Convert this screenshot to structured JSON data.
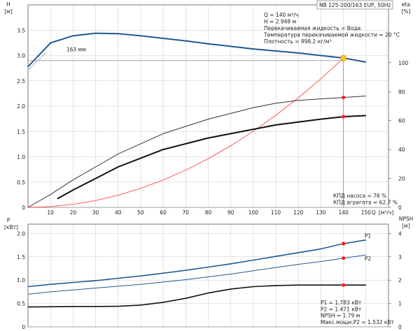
{
  "chart_data": [
    {
      "type": "line",
      "title": "NB 125-200/163 EUP, 50Hz",
      "left_axis": {
        "label": "H",
        "unit": "[м]",
        "ylim": [
          0,
          4.0
        ],
        "ticks": [
          "0",
          "0.5",
          "1.0",
          "1.5",
          "2.0",
          "2.5",
          "3.0",
          "3.5"
        ]
      },
      "right_axis": {
        "label": "eta",
        "unit": "[%]",
        "ylim": [
          0,
          140
        ],
        "ticks": [
          "0",
          "20",
          "40",
          "60",
          "80",
          "100"
        ]
      },
      "x_axis": {
        "label": "Q",
        "unit": "[м³/ч]",
        "xlim": [
          0,
          160
        ],
        "ticks": [
          "10",
          "20",
          "30",
          "40",
          "50",
          "60",
          "70",
          "80",
          "90",
          "100",
          "110",
          "120",
          "130",
          "140",
          "150"
        ]
      },
      "impeller_label": "163 мм",
      "operating_point": {
        "q": 140,
        "h": 2.948,
        "eta_pump": 76,
        "eta_unit": 62.7
      },
      "series": [
        {
          "key": "H",
          "color": "#1f5a92",
          "axis": "left",
          "x": [
            0,
            10,
            20,
            30,
            40,
            50,
            60,
            70,
            80,
            90,
            100,
            110,
            120,
            130,
            140,
            150
          ],
          "y": [
            2.78,
            3.25,
            3.39,
            3.44,
            3.43,
            3.39,
            3.34,
            3.29,
            3.23,
            3.18,
            3.13,
            3.09,
            3.05,
            3.0,
            2.95,
            2.87
          ]
        },
        {
          "key": "eta_pump",
          "color": "#333333",
          "axis": "right",
          "x": [
            0,
            10,
            20,
            30,
            40,
            50,
            60,
            70,
            80,
            90,
            100,
            110,
            120,
            130,
            140,
            150
          ],
          "y": [
            0,
            9,
            19,
            28,
            37,
            44,
            51,
            56,
            61,
            65,
            69,
            72,
            74,
            75,
            76,
            77
          ]
        },
        {
          "key": "eta_unit",
          "color": "#111111",
          "axis": "right",
          "x": [
            13,
            20,
            30,
            40,
            50,
            60,
            70,
            80,
            90,
            100,
            110,
            120,
            130,
            140,
            150
          ],
          "y": [
            6,
            12,
            20,
            28,
            34,
            40,
            44,
            48,
            51,
            54,
            57,
            59,
            61,
            62.7,
            63.5
          ]
        },
        {
          "key": "system",
          "color": "#ff4a4a",
          "axis": "left",
          "x": [
            0,
            10,
            20,
            30,
            40,
            50,
            60,
            70,
            80,
            90,
            100,
            110,
            120,
            130,
            140
          ],
          "y": [
            0,
            0.015,
            0.06,
            0.135,
            0.24,
            0.376,
            0.541,
            0.737,
            0.963,
            1.218,
            1.504,
            1.82,
            2.166,
            2.542,
            2.948
          ]
        }
      ],
      "reference_lines": {
        "h": 2.9,
        "q": 140
      },
      "info_lines": [
        "Q = 140 м³/ч",
        "H = 2.948 м",
        "Перекачиваемая жидкость = Вода",
        "Температура перекачиваемой жидкости = 20 °C",
        "Плотность = 998.2 кг/м³"
      ],
      "efficiency_lines": [
        "КПД насоса = 76 %",
        "КПД агрегата = 62.7 %"
      ],
      "colors": {
        "head": "#1f5a92",
        "system": "#ff4a4a",
        "marker": "#ff1e1e",
        "op_fill": "#ffd21e"
      }
    },
    {
      "type": "line",
      "left_axis": {
        "label": "P",
        "unit": "[кВт]",
        "ylim": [
          0,
          2.2
        ],
        "ticks": [
          "0",
          "0.5",
          "1.0",
          "1.5",
          "2.0"
        ]
      },
      "right_axis": {
        "label": "NPSH",
        "unit": "[м]",
        "ylim": [
          0,
          4.4
        ],
        "ticks": [
          "0",
          "1",
          "2",
          "3",
          "4"
        ]
      },
      "series": [
        {
          "key": "P1",
          "name": "P1",
          "color": "#1f5a92",
          "axis": "left",
          "x": [
            0,
            10,
            20,
            30,
            40,
            50,
            60,
            70,
            80,
            90,
            100,
            110,
            120,
            130,
            140,
            150
          ],
          "y": [
            0.86,
            0.91,
            0.95,
            0.99,
            1.04,
            1.09,
            1.15,
            1.21,
            1.28,
            1.35,
            1.43,
            1.51,
            1.59,
            1.67,
            1.783,
            1.86
          ]
        },
        {
          "key": "P2",
          "name": "P2",
          "color": "#1f5a92",
          "axis": "left",
          "x": [
            0,
            10,
            20,
            30,
            40,
            50,
            60,
            70,
            80,
            90,
            100,
            110,
            120,
            130,
            140,
            150
          ],
          "y": [
            0.7,
            0.75,
            0.79,
            0.83,
            0.87,
            0.91,
            0.96,
            1.01,
            1.07,
            1.13,
            1.2,
            1.27,
            1.34,
            1.4,
            1.471,
            1.54
          ]
        },
        {
          "key": "NPSH",
          "color": "#111111",
          "axis": "right",
          "x": [
            0,
            10,
            20,
            30,
            40,
            50,
            60,
            70,
            80,
            90,
            100,
            110,
            120,
            130,
            140,
            150
          ],
          "y": [
            0.85,
            0.86,
            0.87,
            0.87,
            0.88,
            0.93,
            1.05,
            1.22,
            1.45,
            1.62,
            1.72,
            1.77,
            1.79,
            1.79,
            1.79,
            1.79
          ]
        }
      ],
      "points": [
        {
          "series": "P1",
          "x": 140,
          "y": 1.783
        },
        {
          "series": "P2",
          "x": 140,
          "y": 1.471
        },
        {
          "series": "NPSH",
          "x": 140,
          "y": 1.79
        }
      ],
      "info_lines": [
        "P1 = 1.783 кВт",
        "P2 = 1.471 кВт",
        "NPSH = 1.79 м",
        "Макс.мощн.P2 = 1.532 кВт"
      ]
    }
  ]
}
